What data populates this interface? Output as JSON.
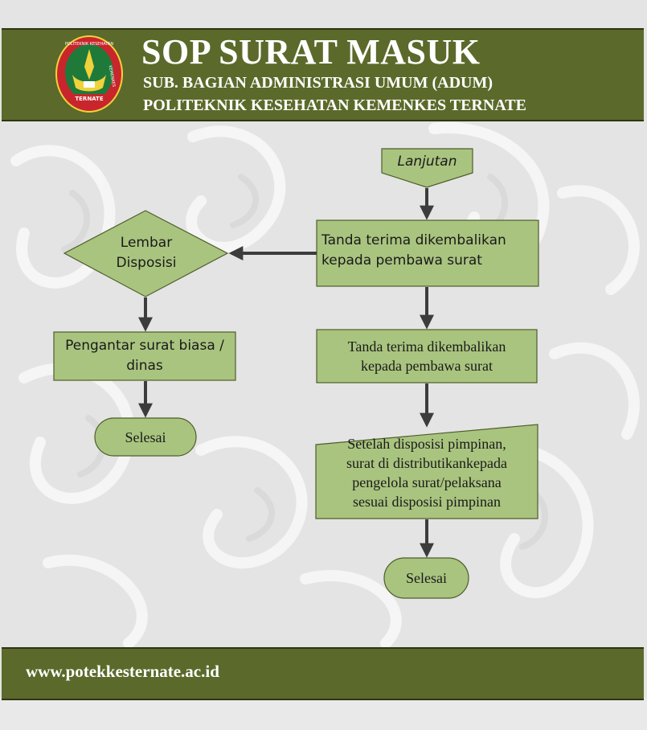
{
  "header": {
    "title": "SOP SURAT MASUK",
    "subtitle_line1": "SUB. BAGIAN ADMINISTRASI UMUM (ADUM)",
    "subtitle_line2": "POLITEKNIK KESEHATAN KEMENKES TERNATE",
    "logo": {
      "top_text": "POLITEKNIK KESEHATAN",
      "side_text": "KEMENKES",
      "bottom_text": "TERNATE"
    }
  },
  "colors": {
    "header_bg": "#5b6a2a",
    "node_fill": "#a9c47f",
    "node_stroke": "#4e5e2a",
    "arrow": "#3c3c3c"
  },
  "flowchart": {
    "nodes": {
      "lanjutan": {
        "shape": "offpage-connector",
        "label": "Lanjutan"
      },
      "tanda_terima_1": {
        "shape": "process",
        "label": "Tanda terima dikembalikan kepada pembawa surat"
      },
      "lembar_disposisi": {
        "shape": "decision",
        "line1": "Lembar",
        "line2": "Disposisi"
      },
      "pengantar": {
        "shape": "process",
        "line1": "Pengantar surat biasa /",
        "line2": "dinas"
      },
      "selesai_left": {
        "shape": "terminator",
        "label": "Selesai"
      },
      "tanda_terima_2": {
        "shape": "process",
        "line1": "Tanda terima dikembalikan",
        "line2": "kepada pembawa surat"
      },
      "distribusi": {
        "shape": "manual-input",
        "line1": "Setelah disposisi pimpinan,",
        "line2": "surat di distributikankepada",
        "line3": "pengelola surat/pelaksana",
        "line4": "sesuai disposisi pimpinan"
      },
      "selesai_right": {
        "shape": "terminator",
        "label": "Selesai"
      }
    },
    "edges": [
      {
        "from": "lanjutan",
        "to": "tanda_terima_1"
      },
      {
        "from": "tanda_terima_1",
        "to": "lembar_disposisi"
      },
      {
        "from": "tanda_terima_1",
        "to": "tanda_terima_2"
      },
      {
        "from": "lembar_disposisi",
        "to": "pengantar"
      },
      {
        "from": "pengantar",
        "to": "selesai_left"
      },
      {
        "from": "tanda_terima_2",
        "to": "distribusi"
      },
      {
        "from": "distribusi",
        "to": "selesai_right"
      }
    ]
  },
  "footer": {
    "url": "www.potekkesternate.ac.id"
  }
}
